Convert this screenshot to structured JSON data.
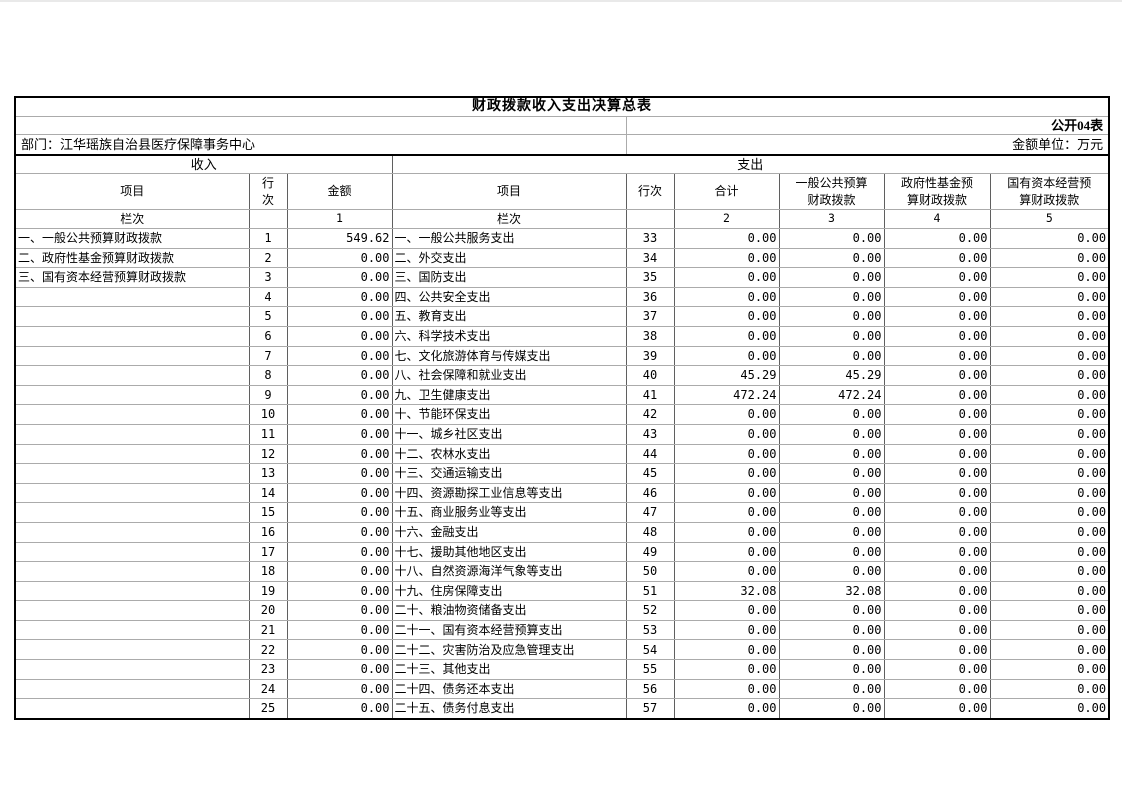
{
  "document": {
    "title": "财政拨款收入支出决算总表",
    "table_code": "公开04表",
    "department": "部门：江华瑶族自治县医疗保障事务中心",
    "unit": "金额单位：万元"
  },
  "table": {
    "sections": {
      "income": "收入",
      "expense": "支出"
    },
    "column_headers": {
      "income_item": "项目",
      "income_row_no": "行\n次",
      "income_amount": "金额",
      "expense_item": "项目",
      "expense_row_no": "行次",
      "expense_total": "合计",
      "expense_general_budget": "一般公共预算\n财政拨款",
      "expense_gov_fund": "政府性基金预\n算财政拨款",
      "expense_state_capital": "国有资本经营预\n算财政拨款"
    },
    "index_row": [
      "栏次",
      "",
      "1",
      "栏次",
      "",
      "2",
      "3",
      "4",
      "5"
    ],
    "rows": [
      [
        "一、一般公共预算财政拨款",
        "1",
        "549.62",
        "一、一般公共服务支出",
        "33",
        "0.00",
        "0.00",
        "0.00",
        "0.00"
      ],
      [
        "二、政府性基金预算财政拨款",
        "2",
        "0.00",
        "二、外交支出",
        "34",
        "0.00",
        "0.00",
        "0.00",
        "0.00"
      ],
      [
        "三、国有资本经营预算财政拨款",
        "3",
        "0.00",
        "三、国防支出",
        "35",
        "0.00",
        "0.00",
        "0.00",
        "0.00"
      ],
      [
        "",
        "4",
        "0.00",
        "四、公共安全支出",
        "36",
        "0.00",
        "0.00",
        "0.00",
        "0.00"
      ],
      [
        "",
        "5",
        "0.00",
        "五、教育支出",
        "37",
        "0.00",
        "0.00",
        "0.00",
        "0.00"
      ],
      [
        "",
        "6",
        "0.00",
        "六、科学技术支出",
        "38",
        "0.00",
        "0.00",
        "0.00",
        "0.00"
      ],
      [
        "",
        "7",
        "0.00",
        "七、文化旅游体育与传媒支出",
        "39",
        "0.00",
        "0.00",
        "0.00",
        "0.00"
      ],
      [
        "",
        "8",
        "0.00",
        "八、社会保障和就业支出",
        "40",
        "45.29",
        "45.29",
        "0.00",
        "0.00"
      ],
      [
        "",
        "9",
        "0.00",
        "九、卫生健康支出",
        "41",
        "472.24",
        "472.24",
        "0.00",
        "0.00"
      ],
      [
        "",
        "10",
        "0.00",
        "十、节能环保支出",
        "42",
        "0.00",
        "0.00",
        "0.00",
        "0.00"
      ],
      [
        "",
        "11",
        "0.00",
        "十一、城乡社区支出",
        "43",
        "0.00",
        "0.00",
        "0.00",
        "0.00"
      ],
      [
        "",
        "12",
        "0.00",
        "十二、农林水支出",
        "44",
        "0.00",
        "0.00",
        "0.00",
        "0.00"
      ],
      [
        "",
        "13",
        "0.00",
        "十三、交通运输支出",
        "45",
        "0.00",
        "0.00",
        "0.00",
        "0.00"
      ],
      [
        "",
        "14",
        "0.00",
        "十四、资源勘探工业信息等支出",
        "46",
        "0.00",
        "0.00",
        "0.00",
        "0.00"
      ],
      [
        "",
        "15",
        "0.00",
        "十五、商业服务业等支出",
        "47",
        "0.00",
        "0.00",
        "0.00",
        "0.00"
      ],
      [
        "",
        "16",
        "0.00",
        "十六、金融支出",
        "48",
        "0.00",
        "0.00",
        "0.00",
        "0.00"
      ],
      [
        "",
        "17",
        "0.00",
        "十七、援助其他地区支出",
        "49",
        "0.00",
        "0.00",
        "0.00",
        "0.00"
      ],
      [
        "",
        "18",
        "0.00",
        "十八、自然资源海洋气象等支出",
        "50",
        "0.00",
        "0.00",
        "0.00",
        "0.00"
      ],
      [
        "",
        "19",
        "0.00",
        "十九、住房保障支出",
        "51",
        "32.08",
        "32.08",
        "0.00",
        "0.00"
      ],
      [
        "",
        "20",
        "0.00",
        "二十、粮油物资储备支出",
        "52",
        "0.00",
        "0.00",
        "0.00",
        "0.00"
      ],
      [
        "",
        "21",
        "0.00",
        "二十一、国有资本经营预算支出",
        "53",
        "0.00",
        "0.00",
        "0.00",
        "0.00"
      ],
      [
        "",
        "22",
        "0.00",
        "二十二、灾害防治及应急管理支出",
        "54",
        "0.00",
        "0.00",
        "0.00",
        "0.00"
      ],
      [
        "",
        "23",
        "0.00",
        "二十三、其他支出",
        "55",
        "0.00",
        "0.00",
        "0.00",
        "0.00"
      ],
      [
        "",
        "24",
        "0.00",
        "二十四、债务还本支出",
        "56",
        "0.00",
        "0.00",
        "0.00",
        "0.00"
      ],
      [
        "",
        "25",
        "0.00",
        "二十五、债务付息支出",
        "57",
        "0.00",
        "0.00",
        "0.00",
        "0.00"
      ]
    ]
  }
}
